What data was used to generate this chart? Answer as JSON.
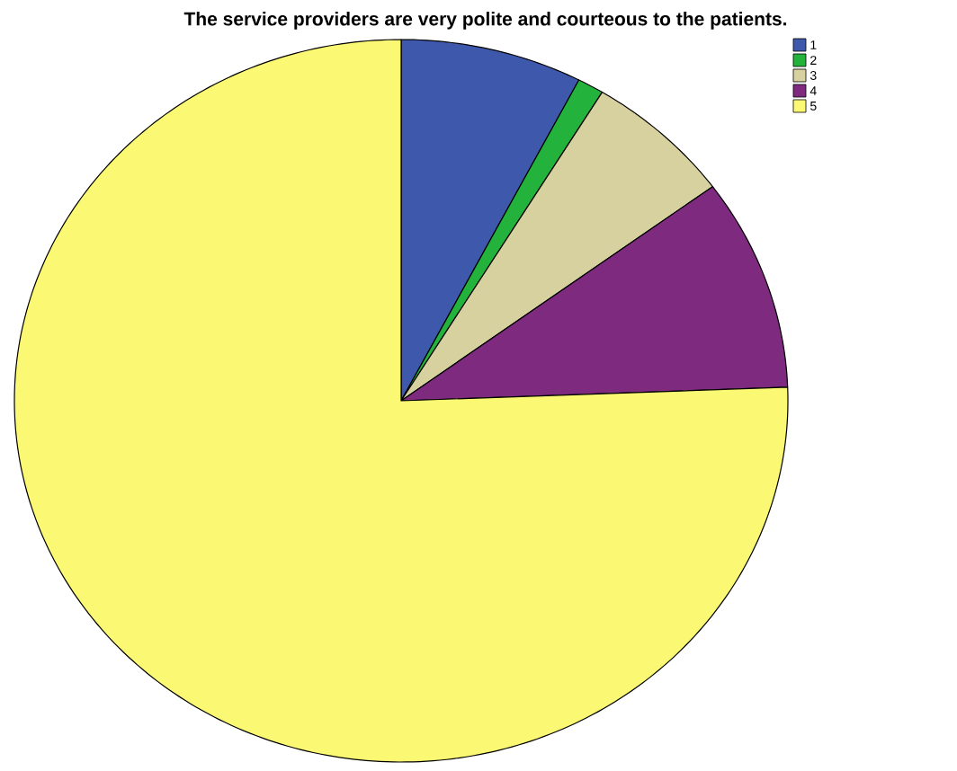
{
  "chart_data": {
    "type": "pie",
    "title": "The service providers are very polite and courteous to the patients.",
    "categories": [
      "1",
      "2",
      "3",
      "4",
      "5"
    ],
    "values": [
      7.6,
      1.1,
      6.2,
      9.5,
      75.6
    ],
    "colors": [
      "#3e58ac",
      "#23b33c",
      "#d6d19f",
      "#7e2a7e",
      "#fbf873"
    ],
    "legend": "top right"
  }
}
